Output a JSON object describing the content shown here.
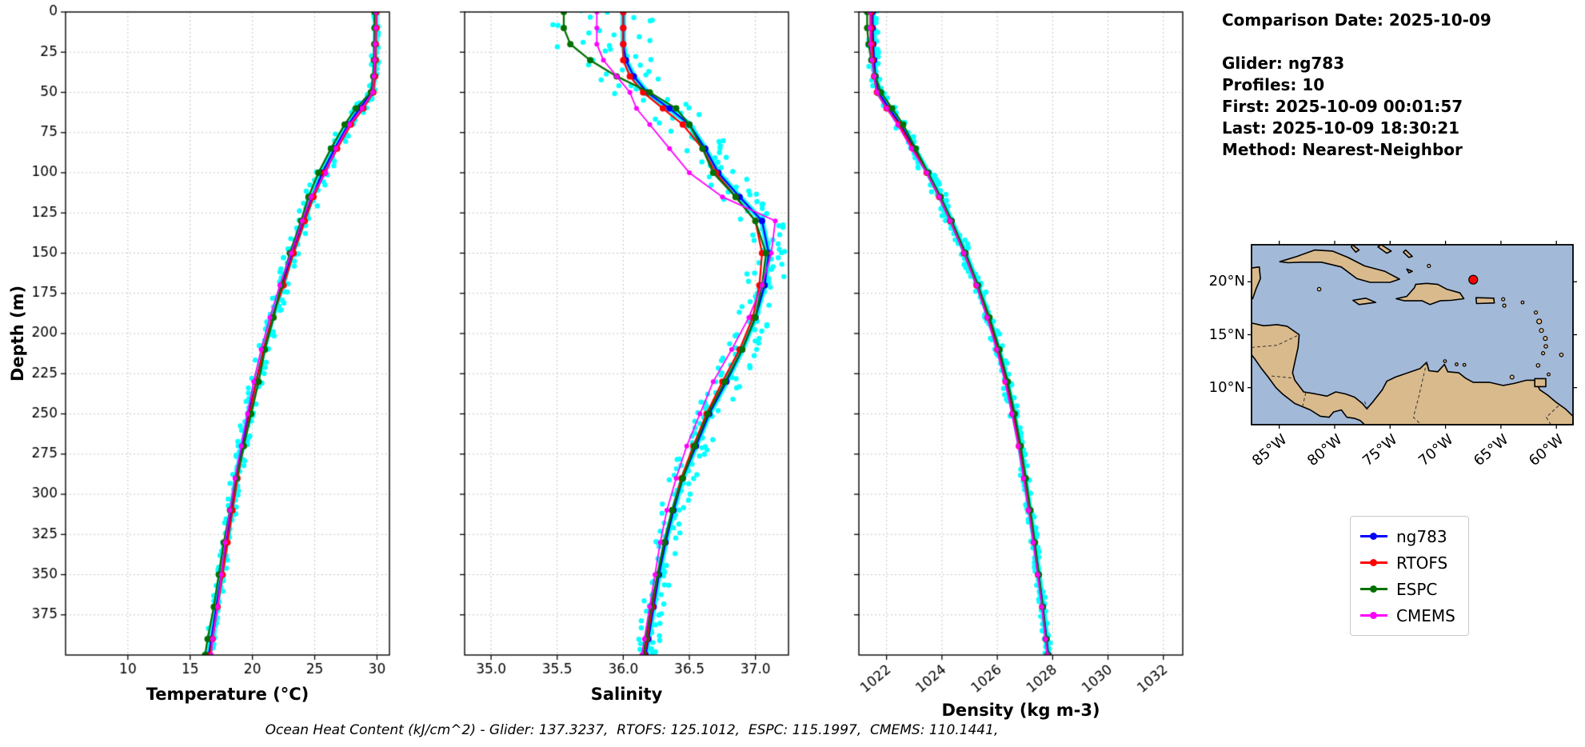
{
  "figure": {
    "ylabel": "Depth (m)",
    "caption": "Ocean Heat Content (kJ/cm^2) - Glider: 137.3237,  RTOFS: 125.1012,  ESPC: 115.1997,  CMEMS: 110.1441,"
  },
  "info": {
    "comparison_date": "Comparison Date: 2025-10-09",
    "glider": "Glider: ng783",
    "profiles": "Profiles: 10",
    "first": "First: 2025-10-09 00:01:57",
    "last": "Last: 2025-10-09 18:30:21",
    "method": "Method: Nearest-Neighbor"
  },
  "legend": {
    "items": [
      {
        "label": "ng783",
        "color": "#0000ff"
      },
      {
        "label": "RTOFS",
        "color": "#ff0000"
      },
      {
        "label": "ESPC",
        "color": "#007000"
      },
      {
        "label": "CMEMS",
        "color": "#ff00ff"
      }
    ]
  },
  "depth": {
    "ticks": [
      0,
      25,
      50,
      75,
      100,
      125,
      150,
      175,
      200,
      225,
      250,
      275,
      300,
      325,
      350,
      375
    ],
    "range": [
      0,
      400
    ]
  },
  "chart_data": [
    {
      "type": "line",
      "xlabel": "Temperature (°C)",
      "xlim": [
        5,
        31
      ],
      "xticks": [
        10,
        15,
        20,
        25,
        30
      ],
      "xtick_labels": [
        "10",
        "15",
        "20",
        "25",
        "30"
      ],
      "rotate_xticks": false,
      "depths": [
        0,
        10,
        20,
        30,
        40,
        50,
        60,
        70,
        85,
        100,
        115,
        130,
        150,
        170,
        190,
        210,
        230,
        250,
        270,
        290,
        310,
        330,
        350,
        370,
        390,
        400
      ],
      "series": [
        {
          "name": "ng783",
          "color": "#0000ff",
          "values": [
            29.9,
            29.9,
            29.88,
            29.85,
            29.8,
            29.6,
            28.6,
            27.7,
            26.6,
            25.6,
            24.8,
            24.1,
            23.2,
            22.4,
            21.6,
            20.9,
            20.3,
            19.7,
            19.2,
            18.7,
            18.3,
            17.9,
            17.5,
            17.1,
            16.7,
            16.5
          ]
        },
        {
          "name": "RTOFS",
          "color": "#ff0000",
          "values": [
            29.95,
            29.95,
            29.9,
            29.9,
            29.85,
            29.7,
            28.9,
            27.9,
            26.8,
            25.8,
            24.9,
            24.2,
            23.3,
            22.5,
            21.6,
            20.9,
            20.3,
            19.8,
            19.3,
            18.8,
            18.4,
            18.0,
            17.6,
            17.2,
            16.8,
            16.6
          ]
        },
        {
          "name": "ESPC",
          "color": "#007000",
          "values": [
            29.8,
            29.8,
            29.78,
            29.75,
            29.7,
            29.5,
            28.3,
            27.4,
            26.3,
            25.3,
            24.5,
            23.9,
            23.0,
            22.3,
            21.7,
            21.0,
            20.5,
            19.9,
            19.3,
            18.7,
            18.2,
            17.7,
            17.3,
            16.9,
            16.4,
            16.2
          ]
        },
        {
          "name": "CMEMS",
          "color": "#ff00ff",
          "values": [
            29.9,
            29.9,
            29.85,
            29.8,
            29.75,
            29.65,
            28.8,
            27.8,
            26.7,
            25.9,
            24.7,
            24.0,
            23.1,
            22.2,
            21.4,
            20.7,
            20.1,
            19.6,
            19.1,
            18.6,
            18.2,
            17.8,
            17.5,
            17.2,
            16.8,
            16.7
          ]
        }
      ],
      "envelope": {
        "name": "glider-raw-scatter",
        "color": "#00ffff",
        "half_width": [
          [
            0,
            0.15
          ],
          [
            50,
            0.45
          ],
          [
            70,
            0.7
          ],
          [
            110,
            0.7
          ],
          [
            150,
            0.6
          ],
          [
            220,
            0.55
          ],
          [
            280,
            0.45
          ],
          [
            340,
            0.38
          ],
          [
            400,
            0.35
          ]
        ]
      }
    },
    {
      "type": "line",
      "xlabel": "Salinity",
      "xlim": [
        34.8,
        37.25
      ],
      "xticks": [
        35.0,
        35.5,
        36.0,
        36.5,
        37.0
      ],
      "xtick_labels": [
        "35.0",
        "35.5",
        "36.0",
        "36.5",
        "37.0"
      ],
      "rotate_xticks": false,
      "depths": [
        0,
        10,
        20,
        30,
        40,
        50,
        60,
        70,
        85,
        100,
        115,
        130,
        150,
        170,
        190,
        210,
        230,
        250,
        270,
        290,
        310,
        330,
        350,
        370,
        390,
        400
      ],
      "series": [
        {
          "name": "ng783",
          "color": "#0000ff",
          "values": [
            36.0,
            36.0,
            36.0,
            36.02,
            36.08,
            36.18,
            36.35,
            36.5,
            36.62,
            36.72,
            36.88,
            37.05,
            37.1,
            37.07,
            37.0,
            36.9,
            36.78,
            36.65,
            36.55,
            36.45,
            36.38,
            36.32,
            36.27,
            36.23,
            36.19,
            36.17
          ]
        },
        {
          "name": "RTOFS",
          "color": "#ff0000",
          "values": [
            36.0,
            36.0,
            36.0,
            36.0,
            36.05,
            36.15,
            36.3,
            36.45,
            36.6,
            36.7,
            36.85,
            37.0,
            37.05,
            37.03,
            36.98,
            36.88,
            36.75,
            36.63,
            36.53,
            36.44,
            36.37,
            36.31,
            36.26,
            36.22,
            36.18,
            36.16
          ]
        },
        {
          "name": "ESPC",
          "color": "#007000",
          "values": [
            35.55,
            35.55,
            35.6,
            35.75,
            35.95,
            36.2,
            36.4,
            36.5,
            36.6,
            36.68,
            36.85,
            37.0,
            37.08,
            37.05,
            37.0,
            36.9,
            36.77,
            36.64,
            36.54,
            36.45,
            36.37,
            36.31,
            36.26,
            36.21,
            36.17,
            36.15
          ]
        },
        {
          "name": "CMEMS",
          "color": "#ff00ff",
          "values": [
            35.8,
            35.8,
            35.8,
            35.85,
            35.95,
            36.05,
            36.1,
            36.2,
            36.35,
            36.5,
            36.75,
            37.15,
            37.12,
            37.05,
            36.95,
            36.82,
            36.68,
            36.58,
            36.48,
            36.4,
            36.33,
            36.28,
            36.24,
            36.2,
            36.16,
            36.14
          ]
        }
      ],
      "envelope": {
        "name": "glider-raw-scatter",
        "color": "#00ffff",
        "half_width": [
          [
            0,
            0.42
          ],
          [
            30,
            0.35
          ],
          [
            50,
            0.25
          ],
          [
            80,
            0.2
          ],
          [
            120,
            0.16
          ],
          [
            200,
            0.14
          ],
          [
            280,
            0.11
          ],
          [
            400,
            0.09
          ]
        ],
        "offset": [
          [
            0,
            -0.18
          ],
          [
            30,
            -0.12
          ],
          [
            60,
            -0.02
          ],
          [
            100,
            0
          ],
          [
            400,
            0
          ]
        ]
      }
    },
    {
      "type": "line",
      "xlabel": "Density (kg m-3)",
      "xlim": [
        1021,
        1032.7
      ],
      "xticks": [
        1022,
        1024,
        1026,
        1028,
        1030,
        1032
      ],
      "xtick_labels": [
        "1022",
        "1024",
        "1026",
        "1028",
        "1030",
        "1032"
      ],
      "rotate_xticks": true,
      "depths": [
        0,
        10,
        20,
        30,
        40,
        50,
        60,
        70,
        85,
        100,
        115,
        130,
        150,
        170,
        190,
        210,
        230,
        250,
        270,
        290,
        310,
        330,
        350,
        370,
        390,
        400
      ],
      "series": [
        {
          "name": "ng783",
          "color": "#0000ff",
          "values": [
            1021.5,
            1021.5,
            1021.52,
            1021.55,
            1021.6,
            1021.7,
            1022.1,
            1022.5,
            1023.0,
            1023.5,
            1023.95,
            1024.35,
            1024.85,
            1025.3,
            1025.7,
            1026.05,
            1026.35,
            1026.6,
            1026.82,
            1027.0,
            1027.18,
            1027.35,
            1027.5,
            1027.65,
            1027.78,
            1027.85
          ]
        },
        {
          "name": "RTOFS",
          "color": "#ff0000",
          "values": [
            1021.45,
            1021.45,
            1021.47,
            1021.5,
            1021.55,
            1021.65,
            1022.0,
            1022.45,
            1022.95,
            1023.45,
            1023.9,
            1024.3,
            1024.8,
            1025.25,
            1025.65,
            1026.0,
            1026.3,
            1026.55,
            1026.78,
            1026.97,
            1027.15,
            1027.32,
            1027.47,
            1027.62,
            1027.75,
            1027.82
          ]
        },
        {
          "name": "ESPC",
          "color": "#007000",
          "values": [
            1021.3,
            1021.3,
            1021.35,
            1021.45,
            1021.6,
            1021.8,
            1022.2,
            1022.6,
            1023.05,
            1023.5,
            1023.95,
            1024.35,
            1024.85,
            1025.3,
            1025.72,
            1026.08,
            1026.38,
            1026.63,
            1026.85,
            1027.03,
            1027.2,
            1027.36,
            1027.5,
            1027.64,
            1027.77,
            1027.83
          ]
        },
        {
          "name": "CMEMS",
          "color": "#ff00ff",
          "values": [
            1021.4,
            1021.4,
            1021.42,
            1021.47,
            1021.55,
            1021.65,
            1022.0,
            1022.4,
            1022.9,
            1023.45,
            1023.9,
            1024.3,
            1024.8,
            1025.25,
            1025.63,
            1025.98,
            1026.28,
            1026.53,
            1026.76,
            1026.95,
            1027.13,
            1027.3,
            1027.46,
            1027.61,
            1027.74,
            1027.81
          ]
        }
      ],
      "envelope": {
        "name": "glider-raw-scatter",
        "color": "#00ffff",
        "half_width": [
          [
            0,
            0.18
          ],
          [
            60,
            0.22
          ],
          [
            120,
            0.25
          ],
          [
            200,
            0.2
          ],
          [
            300,
            0.15
          ],
          [
            400,
            0.12
          ]
        ]
      }
    }
  ],
  "map": {
    "extent": {
      "lon": [
        -87.5,
        -58.5
      ],
      "lat": [
        6.5,
        23.5
      ]
    },
    "ocean_color": "#a2b9d8",
    "land_color": "#d9ba8c",
    "lat_labels": [
      "20°N",
      "15°N",
      "10°N"
    ],
    "lat_values": [
      20,
      15,
      10
    ],
    "lon_labels": [
      "85°W",
      "80°W",
      "75°W",
      "70°W",
      "65°W",
      "60°W"
    ],
    "lon_values": [
      -85,
      -80,
      -75,
      -70,
      -65,
      -60
    ],
    "marker": {
      "lon": -67.5,
      "lat": 20.2,
      "color": "#ff0000"
    }
  }
}
